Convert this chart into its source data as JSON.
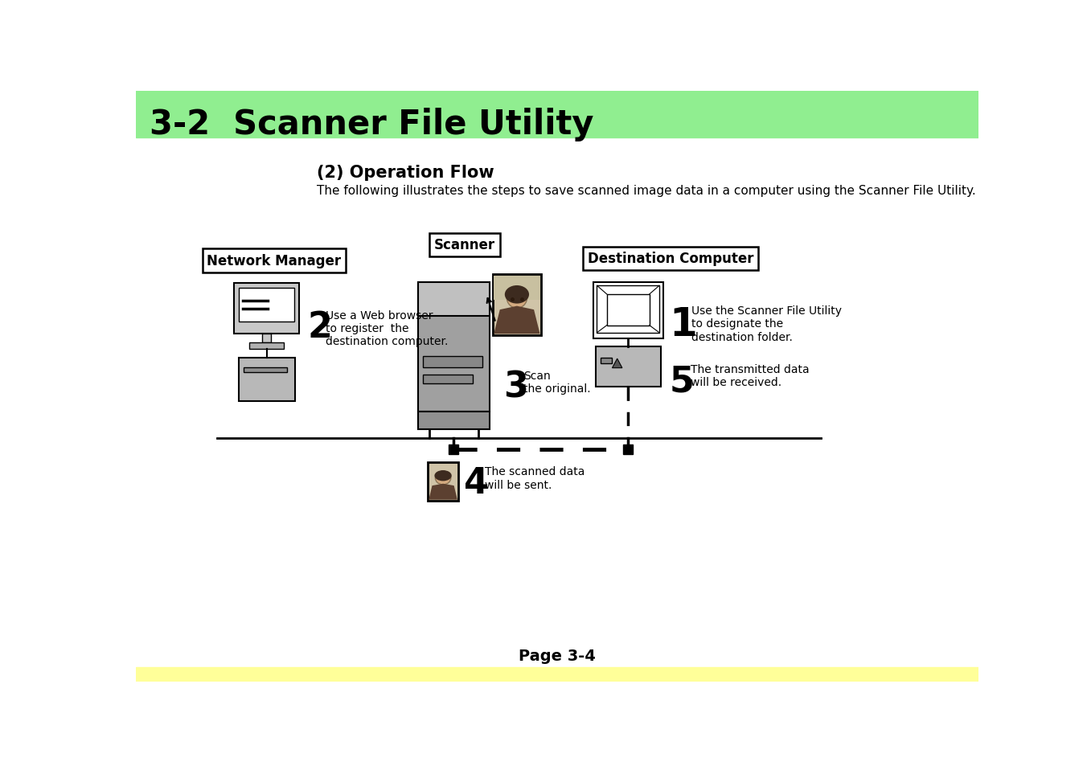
{
  "title": "3-2  Scanner File Utility",
  "title_bar_color": "#90EE90",
  "subtitle": "(2) Operation Flow",
  "description": "The following illustrates the steps to save scanned image data in a computer using the Scanner File Utility.",
  "footer_text": "Page 3-4",
  "footer_bar_color": "#FFFF99",
  "background_color": "#FFFFFF",
  "labels": {
    "network_manager": "Network Manager",
    "scanner": "Scanner",
    "destination_computer": "Destination Computer"
  },
  "step_labels": {
    "1": "Use the Scanner File Utility\nto designate the\ndestination folder.",
    "2": "Use a Web browser\nto register  the\ndestination computer.",
    "3": "Scan\nthe original.",
    "4": "The scanned data\nwill be sent.",
    "5": "The transmitted data\nwill be received."
  }
}
